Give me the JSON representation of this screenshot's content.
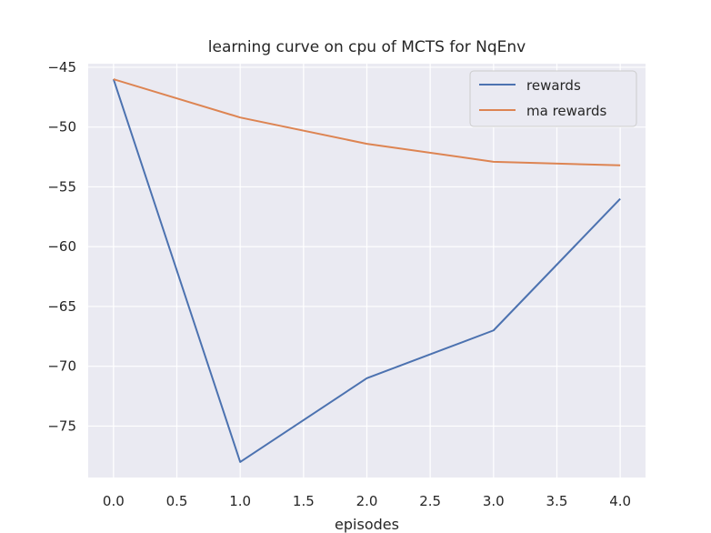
{
  "chart_data": {
    "type": "line",
    "title": "learning curve on cpu of MCTS for NqEnv",
    "xlabel": "episodes",
    "ylabel": "",
    "x": [
      0,
      1,
      2,
      3,
      4
    ],
    "xlim": [
      -0.2,
      4.2
    ],
    "ylim": [
      -79.3,
      -44.7
    ],
    "x_ticks": [
      0.0,
      0.5,
      1.0,
      1.5,
      2.0,
      2.5,
      3.0,
      3.5,
      4.0
    ],
    "x_tick_labels": [
      "0.0",
      "0.5",
      "1.0",
      "1.5",
      "2.0",
      "2.5",
      "3.0",
      "3.5",
      "4.0"
    ],
    "y_ticks": [
      -45,
      -50,
      -55,
      -60,
      -65,
      -70,
      -75
    ],
    "y_tick_labels": [
      "−45",
      "−50",
      "−55",
      "−60",
      "−65",
      "−70",
      "−75"
    ],
    "grid": true,
    "legend_position": "top-right",
    "series": [
      {
        "name": "rewards",
        "color": "#4c72b0",
        "values": [
          -46.0,
          -78.0,
          -71.0,
          -67.0,
          -56.0
        ]
      },
      {
        "name": "ma rewards",
        "color": "#dd8452",
        "values": [
          -46.0,
          -49.2,
          -51.4,
          -52.9,
          -53.2
        ]
      }
    ]
  }
}
